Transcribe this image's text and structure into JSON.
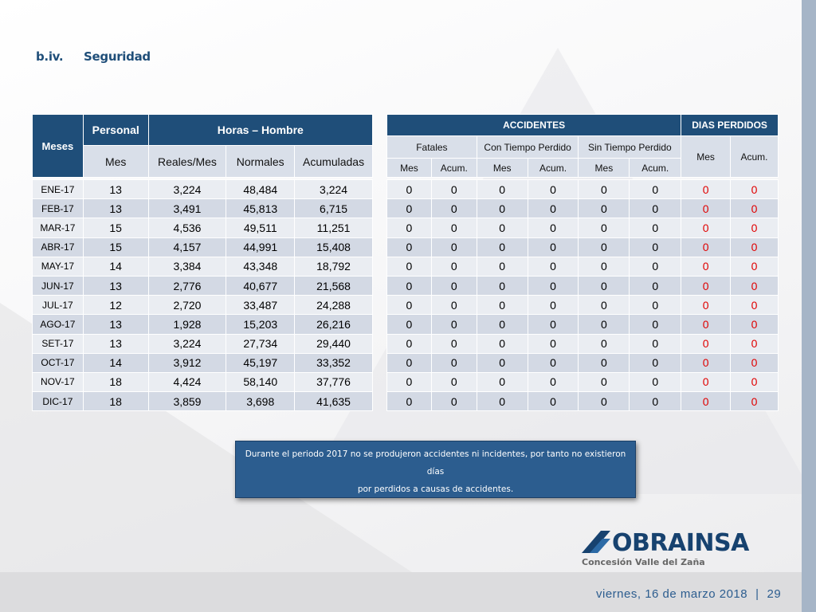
{
  "section": {
    "number": "b.iv.",
    "title": "Seguridad"
  },
  "table_left": {
    "header_meses": "Meses",
    "header_personal": "Personal",
    "header_horas": "Horas – Hombre",
    "sub_mes": "Mes",
    "sub_reales": "Reales/Mes",
    "sub_normales": "Normales",
    "sub_acumuladas": "Acumuladas",
    "rows": [
      {
        "month": "ENE-17",
        "personal": "13",
        "reales": "3,224",
        "normales": "48,484",
        "acumuladas": "3,224"
      },
      {
        "month": "FEB-17",
        "personal": "13",
        "reales": "3,491",
        "normales": "45,813",
        "acumuladas": "6,715"
      },
      {
        "month": "MAR-17",
        "personal": "15",
        "reales": "4,536",
        "normales": "49,511",
        "acumuladas": "11,251"
      },
      {
        "month": "ABR-17",
        "personal": "15",
        "reales": "4,157",
        "normales": "44,991",
        "acumuladas": "15,408"
      },
      {
        "month": "MAY-17",
        "personal": "14",
        "reales": "3,384",
        "normales": "43,348",
        "acumuladas": "18,792"
      },
      {
        "month": "JUN-17",
        "personal": "13",
        "reales": "2,776",
        "normales": "40,677",
        "acumuladas": "21,568"
      },
      {
        "month": "JUL-17",
        "personal": "12",
        "reales": "2,720",
        "normales": "33,487",
        "acumuladas": "24,288"
      },
      {
        "month": "AGO-17",
        "personal": "13",
        "reales": "1,928",
        "normales": "15,203",
        "acumuladas": "26,216"
      },
      {
        "month": "SET-17",
        "personal": "13",
        "reales": "3,224",
        "normales": "27,734",
        "acumuladas": "29,440"
      },
      {
        "month": "OCT-17",
        "personal": "14",
        "reales": "3,912",
        "normales": "45,197",
        "acumuladas": "33,352"
      },
      {
        "month": "NOV-17",
        "personal": "18",
        "reales": "4,424",
        "normales": "58,140",
        "acumuladas": "37,776"
      },
      {
        "month": "DIC-17",
        "personal": "18",
        "reales": "3,859",
        "normales": "3,698",
        "acumuladas": "41,635"
      }
    ]
  },
  "table_right": {
    "header_accidentes": "ACCIDENTES",
    "header_dias": "DIAS PERDIDOS",
    "group_fatales": "Fatales",
    "group_con_tiempo": "Con Tiempo Perdido",
    "group_sin_tiempo": "Sin Tiempo Perdido",
    "sub_mes": "Mes",
    "sub_acum": "Acum.",
    "rows": [
      [
        "0",
        "0",
        "0",
        "0",
        "0",
        "0",
        "0",
        "0"
      ],
      [
        "0",
        "0",
        "0",
        "0",
        "0",
        "0",
        "0",
        "0"
      ],
      [
        "0",
        "0",
        "0",
        "0",
        "0",
        "0",
        "0",
        "0"
      ],
      [
        "0",
        "0",
        "0",
        "0",
        "0",
        "0",
        "0",
        "0"
      ],
      [
        "0",
        "0",
        "0",
        "0",
        "0",
        "0",
        "0",
        "0"
      ],
      [
        "0",
        "0",
        "0",
        "0",
        "0",
        "0",
        "0",
        "0"
      ],
      [
        "0",
        "0",
        "0",
        "0",
        "0",
        "0",
        "0",
        "0"
      ],
      [
        "0",
        "0",
        "0",
        "0",
        "0",
        "0",
        "0",
        "0"
      ],
      [
        "0",
        "0",
        "0",
        "0",
        "0",
        "0",
        "0",
        "0"
      ],
      [
        "0",
        "0",
        "0",
        "0",
        "0",
        "0",
        "0",
        "0"
      ],
      [
        "0",
        "0",
        "0",
        "0",
        "0",
        "0",
        "0",
        "0"
      ],
      [
        "0",
        "0",
        "0",
        "0",
        "0",
        "0",
        "0",
        "0"
      ]
    ]
  },
  "note": {
    "line1": "Durante el periodo 2017 no se produjeron accidentes ni incidentes, por tanto no existieron días",
    "line2": "por perdidos a causas de accidentes."
  },
  "logo": {
    "name": "OBRAINSA",
    "subtitle": "Concesión Valle del Zaña",
    "icon": "obrainsa-logo-icon"
  },
  "footer": {
    "date": "viernes, 16 de marzo 2018",
    "separator": "|",
    "page": "29"
  },
  "colors": {
    "header_blue": "#1f4e79",
    "red_value": "#e00000",
    "note_bg": "#2c5d8f"
  }
}
